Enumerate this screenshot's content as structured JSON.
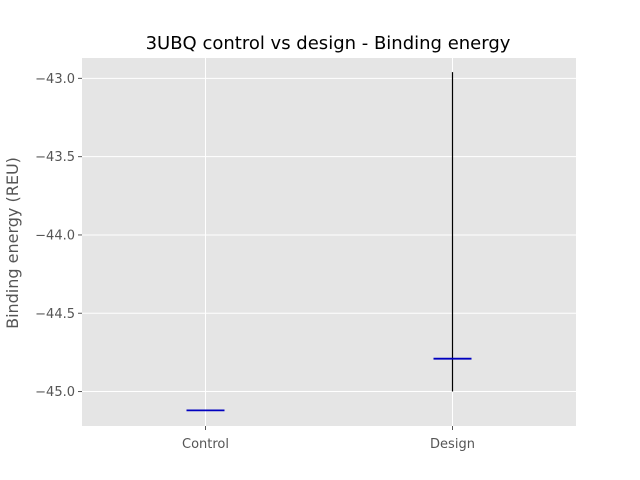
{
  "chart_data": {
    "type": "boxplot",
    "title": "3UBQ control vs design - Binding energy",
    "xlabel": "",
    "ylabel": "Binding energy (REU)",
    "categories": [
      "Control",
      "Design"
    ],
    "series": [
      {
        "category": "Control",
        "min": -45.12,
        "median": -45.12,
        "max": -45.12
      },
      {
        "category": "Design",
        "min": -45.0,
        "median": -44.79,
        "max": -42.96
      }
    ],
    "ylim": [
      -45.22,
      -42.87
    ],
    "yticks": [
      -43.0,
      -43.5,
      -44.0,
      -44.5,
      -45.0
    ],
    "ytick_labels": [
      "−43.0",
      "−43.5",
      "−44.0",
      "−44.5",
      "−45.0"
    ],
    "grid": true,
    "colors": {
      "background": "#e5e5e5",
      "grid": "#ffffff",
      "median": "#0000bf",
      "whisker": "#000000"
    }
  }
}
